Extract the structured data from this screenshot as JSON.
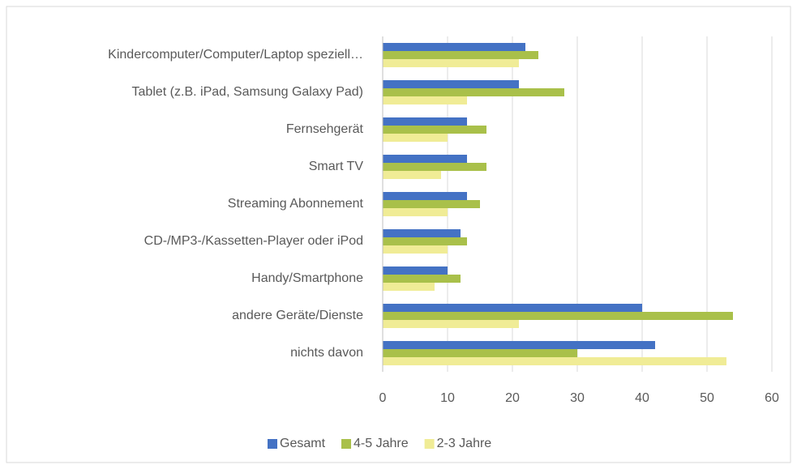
{
  "chart_data": {
    "type": "hbar",
    "categories": [
      "Kindercomputer/Computer/Laptop speziell…",
      "Tablet (z.B. iPad, Samsung Galaxy Pad)",
      "Fernsehgerät",
      "Smart TV",
      "Streaming Abonnement",
      "CD-/MP3-/Kassetten-Player oder iPod",
      "Handy/Smartphone",
      "andere Geräte/Dienste",
      "nichts davon"
    ],
    "series": [
      {
        "name": "Gesamt",
        "color": "#4472c4",
        "values": [
          22,
          21,
          13,
          13,
          13,
          12,
          10,
          40,
          42
        ]
      },
      {
        "name": "4-5 Jahre",
        "color": "#a9c04a",
        "values": [
          24,
          28,
          16,
          16,
          15,
          13,
          12,
          54,
          30
        ]
      },
      {
        "name": "2-3 Jahre",
        "color": "#f0ec96",
        "values": [
          21,
          13,
          10,
          9,
          10,
          10,
          8,
          21,
          53
        ]
      }
    ],
    "xlim": [
      0,
      60
    ],
    "xticks": [
      0,
      10,
      20,
      30,
      40,
      50,
      60
    ],
    "grid": true,
    "legend": "bottom"
  }
}
